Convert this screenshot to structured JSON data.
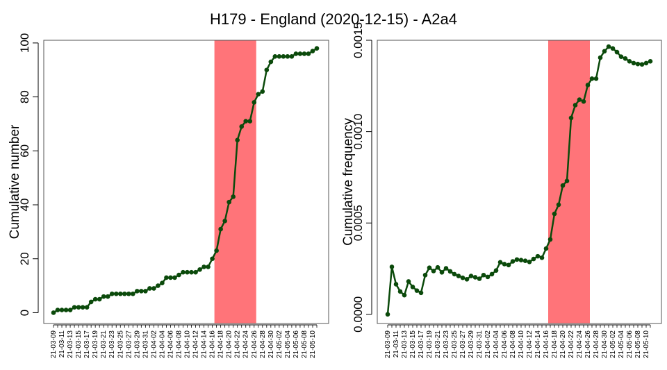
{
  "title": "H179 - England (2020-12-15) - A2a4",
  "colors": {
    "line": "#0b4a0b",
    "highlight": "#ff7479",
    "axis": "#000000",
    "frame": "#555555"
  },
  "chart_data": [
    {
      "type": "line",
      "ylabel": "Cumulative number",
      "ylim": [
        -4,
        101
      ],
      "yticks": [
        0,
        20,
        40,
        60,
        80,
        100
      ],
      "ytick_labels": [
        "0",
        "20",
        "40",
        "60",
        "80",
        "100"
      ],
      "xtick_labels": [
        "21-03-09",
        "21-03-11",
        "21-03-13",
        "21-03-15",
        "21-03-17",
        "21-03-19",
        "21-03-21",
        "21-03-23",
        "21-03-25",
        "21-03-27",
        "21-03-29",
        "21-03-31",
        "21-04-02",
        "21-04-04",
        "21-04-06",
        "21-04-08",
        "21-04-10",
        "21-04-12",
        "21-04-14",
        "21-04-16",
        "21-04-18",
        "21-04-20",
        "21-04-22",
        "21-04-24",
        "21-04-26",
        "21-04-28",
        "21-04-30",
        "21-05-02",
        "21-05-04",
        "21-05-06",
        "21-05-08",
        "21-05-10"
      ],
      "highlight": {
        "x_start": "21-04-17",
        "x_end": "21-04-26"
      },
      "series": [
        {
          "x": [
            "21-03-09",
            "21-03-10",
            "21-03-11",
            "21-03-12",
            "21-03-13",
            "21-03-14",
            "21-03-15",
            "21-03-16",
            "21-03-17",
            "21-03-18",
            "21-03-19",
            "21-03-20",
            "21-03-21",
            "21-03-22",
            "21-03-23",
            "21-03-24",
            "21-03-25",
            "21-03-26",
            "21-03-27",
            "21-03-28",
            "21-03-29",
            "21-03-30",
            "21-03-31",
            "21-04-01",
            "21-04-02",
            "21-04-03",
            "21-04-04",
            "21-04-05",
            "21-04-06",
            "21-04-07",
            "21-04-08",
            "21-04-09",
            "21-04-10",
            "21-04-11",
            "21-04-12",
            "21-04-13",
            "21-04-14",
            "21-04-15",
            "21-04-16",
            "21-04-17",
            "21-04-18",
            "21-04-19",
            "21-04-20",
            "21-04-21",
            "21-04-22",
            "21-04-23",
            "21-04-24",
            "21-04-25",
            "21-04-26",
            "21-04-27",
            "21-04-28",
            "21-04-29",
            "21-04-30",
            "21-05-01",
            "21-05-02",
            "21-05-03",
            "21-05-04",
            "21-05-05",
            "21-05-06",
            "21-05-07",
            "21-05-08",
            "21-05-09",
            "21-05-10",
            "21-05-11"
          ],
          "values": [
            0,
            1,
            1,
            1,
            1,
            2,
            2,
            2,
            2,
            4,
            5,
            5,
            6,
            6,
            7,
            7,
            7,
            7,
            7,
            7,
            8,
            8,
            8,
            9,
            9,
            10,
            11,
            13,
            13,
            13,
            14,
            15,
            15,
            15,
            15,
            16,
            17,
            17,
            20,
            23,
            31,
            34,
            41,
            43,
            64,
            69,
            71,
            71,
            78,
            81,
            82,
            90,
            93,
            95,
            95,
            95,
            95,
            95,
            96,
            96,
            96,
            96,
            97,
            98
          ]
        }
      ]
    },
    {
      "type": "line",
      "ylabel": "Cumulative frequency",
      "ylim": [
        -5e-05,
        0.0015
      ],
      "yticks": [
        0,
        0.0005,
        0.001,
        0.0015
      ],
      "ytick_labels": [
        "0.0000",
        "0.0005",
        "0.0010",
        "0.0015"
      ],
      "xtick_labels": [
        "21-03-09",
        "21-03-11",
        "21-03-13",
        "21-03-15",
        "21-03-17",
        "21-03-19",
        "21-03-21",
        "21-03-23",
        "21-03-25",
        "21-03-27",
        "21-03-29",
        "21-03-31",
        "21-04-02",
        "21-04-04",
        "21-04-06",
        "21-04-08",
        "21-04-10",
        "21-04-12",
        "21-04-14",
        "21-04-16",
        "21-04-18",
        "21-04-20",
        "21-04-22",
        "21-04-24",
        "21-04-26",
        "21-04-28",
        "21-04-30",
        "21-05-02",
        "21-05-04",
        "21-05-06",
        "21-05-08",
        "21-05-10"
      ],
      "highlight": {
        "x_start": "21-04-17",
        "x_end": "21-04-26"
      },
      "series": [
        {
          "x": [
            "21-03-09",
            "21-03-10",
            "21-03-11",
            "21-03-12",
            "21-03-13",
            "21-03-14",
            "21-03-15",
            "21-03-16",
            "21-03-17",
            "21-03-18",
            "21-03-19",
            "21-03-20",
            "21-03-21",
            "21-03-22",
            "21-03-23",
            "21-03-24",
            "21-03-25",
            "21-03-26",
            "21-03-27",
            "21-03-28",
            "21-03-29",
            "21-03-30",
            "21-03-31",
            "21-04-01",
            "21-04-02",
            "21-04-03",
            "21-04-04",
            "21-04-05",
            "21-04-06",
            "21-04-07",
            "21-04-08",
            "21-04-09",
            "21-04-10",
            "21-04-11",
            "21-04-12",
            "21-04-13",
            "21-04-14",
            "21-04-15",
            "21-04-16",
            "21-04-17",
            "21-04-18",
            "21-04-19",
            "21-04-20",
            "21-04-21",
            "21-04-22",
            "21-04-23",
            "21-04-24",
            "21-04-25",
            "21-04-26",
            "21-04-27",
            "21-04-28",
            "21-04-29",
            "21-04-30",
            "21-05-01",
            "21-05-02",
            "21-05-03",
            "21-05-04",
            "21-05-05",
            "21-05-06",
            "21-05-07",
            "21-05-08",
            "21-05-09",
            "21-05-10",
            "21-05-11"
          ],
          "values": [
            0.0,
            0.00026,
            0.000165,
            0.000125,
            0.000105,
            0.00018,
            0.00015,
            0.00013,
            0.000118,
            0.000215,
            0.000255,
            0.000237,
            0.000257,
            0.00023,
            0.000252,
            0.000235,
            0.00022,
            0.00021,
            0.0002,
            0.000192,
            0.00021,
            0.000203,
            0.000195,
            0.000215,
            0.000205,
            0.00022,
            0.00024,
            0.000285,
            0.000275,
            0.00027,
            0.00029,
            0.0003,
            0.000297,
            0.000293,
            0.000287,
            0.000303,
            0.000318,
            0.00031,
            0.00036,
            0.00041,
            0.00055,
            0.0006,
            0.000705,
            0.00073,
            0.001075,
            0.001145,
            0.001175,
            0.001165,
            0.001255,
            0.00129,
            0.00129,
            0.001405,
            0.00144,
            0.001465,
            0.001455,
            0.001435,
            0.00141,
            0.0014,
            0.001385,
            0.001375,
            0.00137,
            0.001368,
            0.001375,
            0.001385
          ]
        }
      ]
    }
  ]
}
